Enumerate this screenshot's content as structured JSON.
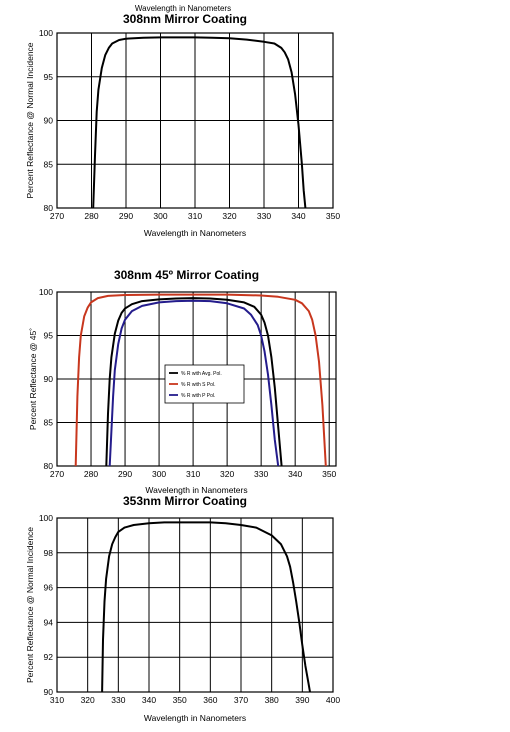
{
  "chart_data": [
    {
      "type": "line",
      "top_caption": "Wavelength in Nanometers",
      "title": "308nm Mirror Coating",
      "xlabel": "Wavelength in Nanometers",
      "ylabel": "Percent Reflectance @ Normal Incidence",
      "xlim": [
        270,
        350
      ],
      "ylim": [
        80,
        100
      ],
      "xticks": [
        "270",
        "280",
        "290",
        "300",
        "310",
        "320",
        "330",
        "340",
        "350"
      ],
      "yticks": [
        "80",
        "85",
        "90",
        "95",
        "100"
      ],
      "grid": true,
      "legend": [],
      "series": [
        {
          "color": "#000000",
          "x": [
            280.5,
            281,
            281.5,
            282,
            283,
            284,
            285,
            286,
            288,
            290,
            295,
            300,
            305,
            310,
            315,
            320,
            325,
            330,
            333,
            335,
            336,
            337,
            338,
            339,
            340,
            341,
            341.5,
            342
          ],
          "y": [
            80,
            86,
            91,
            93.5,
            96,
            97.5,
            98.3,
            98.8,
            99.2,
            99.35,
            99.45,
            99.5,
            99.5,
            99.5,
            99.45,
            99.4,
            99.25,
            99.0,
            98.8,
            98.3,
            97.8,
            97.0,
            95.5,
            93,
            89.5,
            85,
            82,
            80
          ]
        }
      ]
    },
    {
      "type": "line",
      "title": "308nm 45º Mirror Coating",
      "xlabel": "Wavelength in Nanometers",
      "ylabel": "Percent Reflectance @ 45˚",
      "xlim": [
        270,
        352
      ],
      "ylim": [
        80,
        100
      ],
      "xticks": [
        "270",
        "280",
        "290",
        "300",
        "310",
        "320",
        "330",
        "340",
        "350"
      ],
      "yticks": [
        "80",
        "85",
        "90",
        "95",
        "100"
      ],
      "grid": true,
      "legend": [
        "% R with Avg. Pol.",
        "% R with S Pol.",
        "% R with P Pol."
      ],
      "legend_position": "center",
      "series": [
        {
          "name": "% R with Avg. Pol.",
          "color": "#000000",
          "x": [
            284.5,
            285,
            285.5,
            286,
            287,
            288,
            289,
            290,
            292,
            295,
            300,
            305,
            310,
            315,
            320,
            325,
            328,
            330,
            331,
            332,
            333,
            334,
            335,
            336
          ],
          "y": [
            80,
            86,
            90,
            92.5,
            95.2,
            96.7,
            97.6,
            98.1,
            98.6,
            98.95,
            99.15,
            99.25,
            99.3,
            99.25,
            99.1,
            98.8,
            98.3,
            97.4,
            96.5,
            95,
            92.5,
            89,
            84.5,
            80
          ]
        },
        {
          "name": "% R with S Pol.",
          "color": "#c8371e",
          "x": [
            275.5,
            276,
            276.5,
            277,
            278,
            279,
            280,
            282,
            285,
            290,
            300,
            310,
            320,
            330,
            335,
            340,
            342,
            344,
            345,
            346,
            347,
            348,
            349
          ],
          "y": [
            80,
            88,
            92.5,
            95,
            97.2,
            98.2,
            98.8,
            99.3,
            99.55,
            99.65,
            99.7,
            99.7,
            99.7,
            99.6,
            99.45,
            99.1,
            98.7,
            97.8,
            96.8,
            95,
            92,
            87,
            80
          ]
        },
        {
          "name": "% R with P Pol.",
          "color": "#241c8c",
          "x": [
            285.5,
            286,
            286.5,
            287,
            288,
            289,
            290,
            292,
            295,
            300,
            305,
            310,
            315,
            320,
            325,
            327,
            329,
            330,
            331,
            332,
            333,
            334,
            335
          ],
          "y": [
            80,
            84,
            88,
            91,
            94,
            95.8,
            96.8,
            97.8,
            98.4,
            98.8,
            98.95,
            99.0,
            98.95,
            98.7,
            98.1,
            97.4,
            96.2,
            95,
            93.2,
            90.5,
            87,
            83,
            80
          ]
        }
      ]
    },
    {
      "type": "line",
      "title": "353nm Mirror Coating",
      "xlabel": "Wavelength in Nanometers",
      "ylabel": "Percent Reflectance @ Normal Incidence",
      "xlim": [
        310,
        400
      ],
      "ylim": [
        90,
        100
      ],
      "xticks": [
        "310",
        "320",
        "330",
        "340",
        "350",
        "360",
        "370",
        "380",
        "390",
        "400"
      ],
      "yticks": [
        "90",
        "92",
        "94",
        "96",
        "98",
        "100"
      ],
      "grid": true,
      "legend": [],
      "series": [
        {
          "color": "#000000",
          "x": [
            324.7,
            325,
            325.5,
            326,
            327,
            328,
            329,
            330,
            332,
            335,
            340,
            345,
            350,
            355,
            360,
            365,
            370,
            375,
            380,
            383,
            385,
            386,
            387,
            388,
            389,
            390,
            391,
            392,
            392.5
          ],
          "y": [
            90,
            93,
            95.2,
            96.5,
            97.8,
            98.5,
            98.9,
            99.2,
            99.45,
            99.6,
            99.7,
            99.75,
            99.75,
            99.75,
            99.75,
            99.7,
            99.6,
            99.45,
            99.0,
            98.5,
            97.8,
            97.2,
            96.3,
            95.2,
            94,
            92.7,
            91.5,
            90.5,
            90
          ]
        }
      ]
    }
  ]
}
